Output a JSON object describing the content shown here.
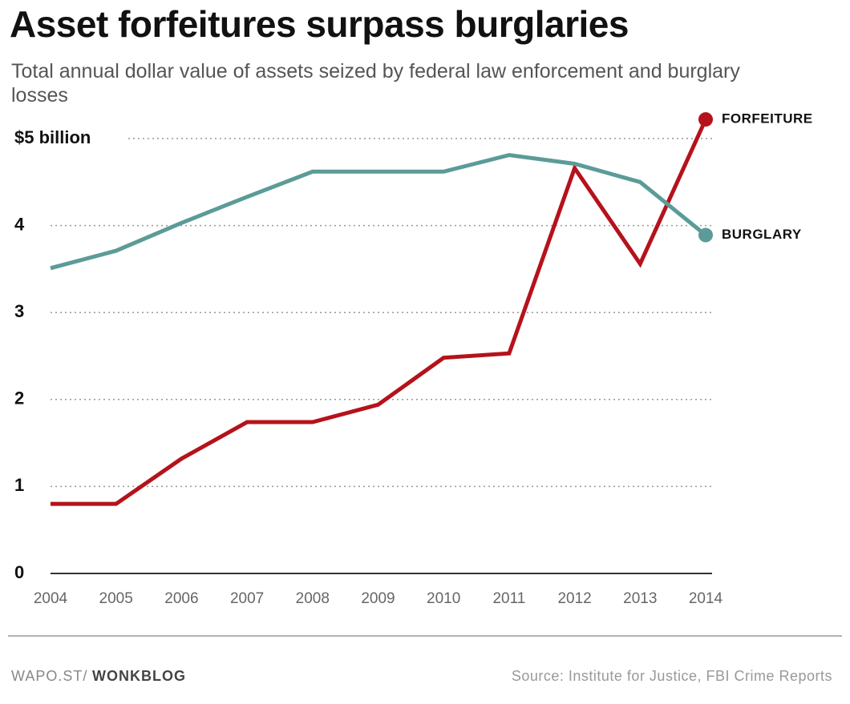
{
  "chart_data": {
    "type": "line",
    "title": "Asset forfeitures surpass burglaries",
    "subtitle": "Total annual dollar value of assets seized by federal law enforcement and burglary losses",
    "x": [
      2004,
      2005,
      2006,
      2007,
      2008,
      2009,
      2010,
      2011,
      2012,
      2013,
      2014
    ],
    "xlim": [
      2004,
      2014
    ],
    "xticks": [
      2004,
      2005,
      2006,
      2007,
      2008,
      2009,
      2010,
      2011,
      2012,
      2013,
      2014
    ],
    "ylim": [
      0,
      5.3
    ],
    "yticks": [
      0,
      1,
      2,
      3,
      4,
      {
        "value": 5,
        "label": "$5 billion"
      }
    ],
    "grid": true,
    "series": [
      {
        "name": "FORFEITURE",
        "color": "#b5121b",
        "values": [
          0.8,
          0.8,
          1.32,
          1.74,
          1.74,
          1.94,
          2.48,
          2.53,
          4.66,
          3.56,
          5.22
        ]
      },
      {
        "name": "BURGLARY",
        "color": "#5b9b98",
        "values": [
          3.51,
          3.71,
          4.03,
          4.33,
          4.62,
          4.62,
          4.62,
          4.81,
          4.71,
          4.5,
          3.89
        ]
      }
    ],
    "credit_prefix": "WAPO.ST/",
    "credit_brand": "WONKBLOG",
    "source": "Source: Institute for Justice, FBI Crime Reports"
  }
}
